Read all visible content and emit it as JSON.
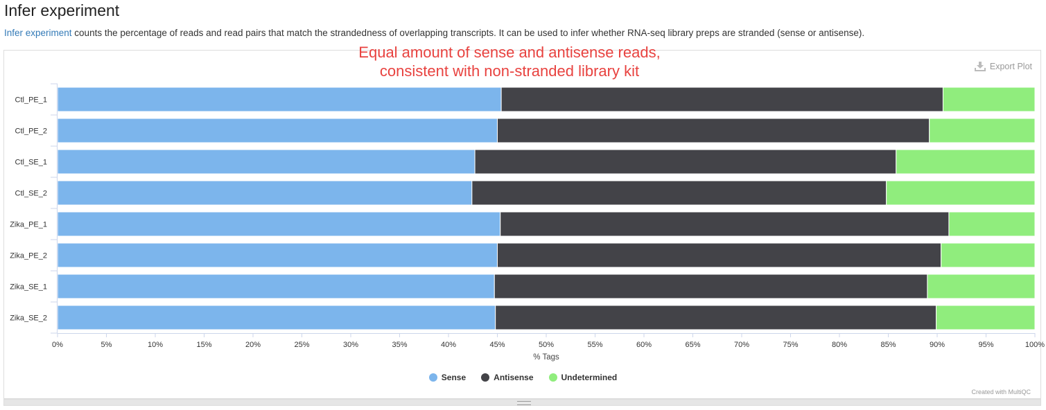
{
  "header": {
    "title": "Infer experiment",
    "link_text": "Infer experiment",
    "description": " counts the percentage of reads and read pairs that match the strandedness of overlapping transcripts. It can be used to infer whether RNA-seq library preps are stranded (sense or antisense)."
  },
  "annotation": {
    "line1": "Equal amount of sense and antisense reads,",
    "line2": "consistent with non-stranded library kit",
    "color": "#e8423f"
  },
  "toolbar": {
    "export_label": "Export Plot",
    "export_icon": "download-icon"
  },
  "footer": {
    "credit": "Created with MultiQC"
  },
  "chart_data": {
    "type": "bar",
    "orientation": "horizontal",
    "stacked": true,
    "categories": [
      "Ctl_PE_1",
      "Ctl_PE_2",
      "Ctl_SE_1",
      "Ctl_SE_2",
      "Zika_PE_1",
      "Zika_PE_2",
      "Zika_SE_1",
      "Zika_SE_2"
    ],
    "series": [
      {
        "name": "Sense",
        "color": "#7cb5ec",
        "values": [
          45.4,
          45.0,
          42.7,
          42.4,
          45.3,
          45.0,
          44.7,
          44.8
        ]
      },
      {
        "name": "Antisense",
        "color": "#434348",
        "values": [
          45.2,
          44.2,
          43.1,
          42.4,
          45.9,
          45.4,
          44.3,
          45.1
        ]
      },
      {
        "name": "Undetermined",
        "color": "#90ed7d",
        "values": [
          9.4,
          10.8,
          14.2,
          15.2,
          8.8,
          9.6,
          11.0,
          10.1
        ]
      }
    ],
    "xlabel": "% Tags",
    "ylabel": "",
    "xlim": [
      0,
      100
    ],
    "xticks": [
      "0%",
      "5%",
      "10%",
      "15%",
      "20%",
      "25%",
      "30%",
      "35%",
      "40%",
      "45%",
      "50%",
      "55%",
      "60%",
      "65%",
      "70%",
      "75%",
      "80%",
      "85%",
      "90%",
      "95%",
      "100%"
    ],
    "grid": false,
    "legend_position": "bottom-center"
  }
}
